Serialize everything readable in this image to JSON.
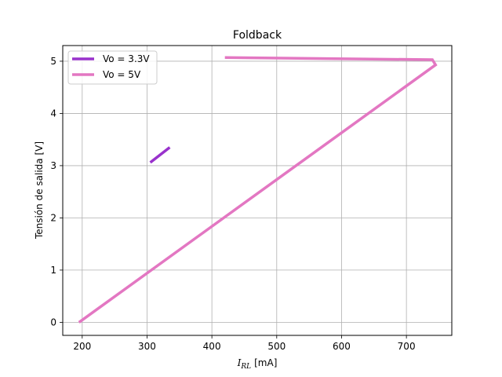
{
  "chart_data": {
    "type": "line",
    "title": "Foldback",
    "xlabel": {
      "math_main": "I",
      "math_sub": "RL",
      "unit": "[mA]"
    },
    "ylabel": "Tensión de salida [V]",
    "xlim": [
      170,
      770
    ],
    "ylim": [
      -0.25,
      5.3
    ],
    "xticks": [
      200,
      300,
      400,
      500,
      600,
      700
    ],
    "yticks": [
      0,
      1,
      2,
      3,
      4,
      5
    ],
    "grid": true,
    "legend_position": "top-left",
    "series": [
      {
        "name": "Vo = 3.3V",
        "color": "#9932cc",
        "x": [
          305,
          335
        ],
        "y": [
          3.06,
          3.35
        ]
      },
      {
        "name": "Vo = 5V",
        "color": "#e377c2",
        "x": [
          195,
          745,
          740,
          420
        ],
        "y": [
          0.0,
          4.93,
          5.03,
          5.07
        ]
      }
    ]
  }
}
